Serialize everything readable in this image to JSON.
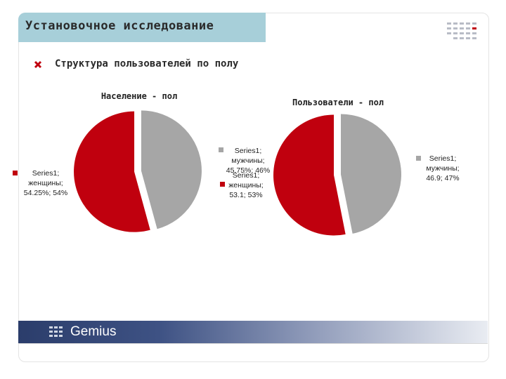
{
  "header": {
    "title": "Установочное исследование"
  },
  "section": {
    "subtitle": "Структура пользователей по полу"
  },
  "colors": {
    "female": "#c0000e",
    "male": "#a6a6a6"
  },
  "chart_data": [
    {
      "type": "pie",
      "title": "Население - пол",
      "series_name": "Series1",
      "slices": [
        {
          "category": "мужчины",
          "value": 45.75,
          "label_line1": "Series1;",
          "label_line2": "мужчины;",
          "label_line3": "45.75%; 46%",
          "color": "#a6a6a6"
        },
        {
          "category": "женщины",
          "value": 54.25,
          "label_line1": "Series1;",
          "label_line2": "женщины;",
          "label_line3": "54.25%; 54%",
          "color": "#c0000e"
        }
      ]
    },
    {
      "type": "pie",
      "title": "Пользователи - пол",
      "series_name": "Series1",
      "slices": [
        {
          "category": "мужчины",
          "value": 46.9,
          "label_line1": "Series1;",
          "label_line2": "мужчины;",
          "label_line3": "46.9; 47%",
          "color": "#a6a6a6"
        },
        {
          "category": "женщины",
          "value": 53.1,
          "label_line1": "Series1;",
          "label_line2": "женщины;",
          "label_line3": "53.1; 53%",
          "color": "#c0000e"
        }
      ]
    }
  ],
  "footer": {
    "brand": "Gemius"
  }
}
